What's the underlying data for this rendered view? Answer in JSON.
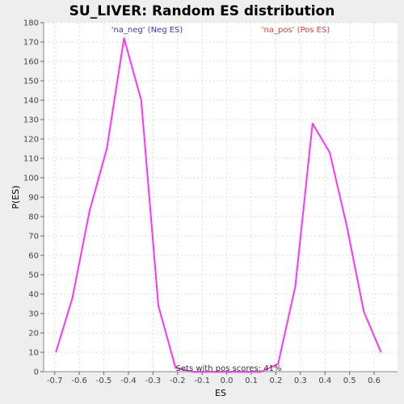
{
  "chart_data": {
    "type": "line",
    "title": "SU_LIVER: Random ES distribution",
    "xlabel": "ES",
    "ylabel": "P(ES)",
    "xlim": [
      -0.745,
      0.695
    ],
    "ylim": [
      0,
      180
    ],
    "xticks": [
      -0.7,
      -0.6,
      -0.5,
      -0.4,
      -0.3,
      -0.2,
      -0.1,
      0.0,
      0.1,
      0.2,
      0.3,
      0.4,
      0.5,
      0.6
    ],
    "xtick_labels": [
      "-0.7",
      "-0.6",
      "-0.5",
      "-0.4",
      "-0.3",
      "-0.2",
      "-0.1",
      "0.0",
      "0.1",
      "0.2",
      "0.3",
      "0.4",
      "0.5",
      "0.6"
    ],
    "yticks": [
      0,
      10,
      20,
      30,
      40,
      50,
      60,
      70,
      80,
      90,
      100,
      110,
      120,
      130,
      140,
      150,
      160,
      170,
      180
    ],
    "grid": true,
    "line_color": "#ff33ff",
    "series": [
      {
        "x": [
          -0.695,
          -0.628,
          -0.558,
          -0.488,
          -0.418,
          -0.348,
          -0.278,
          -0.208,
          -0.139,
          -0.069,
          0.0,
          0.07,
          0.14,
          0.209,
          0.279,
          0.349,
          0.419,
          0.489,
          0.558,
          0.628
        ],
        "values": [
          10,
          38,
          83,
          115,
          172,
          140,
          34,
          2,
          0,
          0,
          0,
          0,
          0,
          4,
          44,
          128,
          113,
          75,
          31,
          10
        ]
      }
    ],
    "annotations": [
      {
        "text": "'na_neg' (Neg ES)",
        "color": "#3333cc"
      },
      {
        "text": "'na_pos' (Pos ES)",
        "color": "#ff3333"
      }
    ],
    "footnote": "Sets with pos scores: 41%"
  }
}
